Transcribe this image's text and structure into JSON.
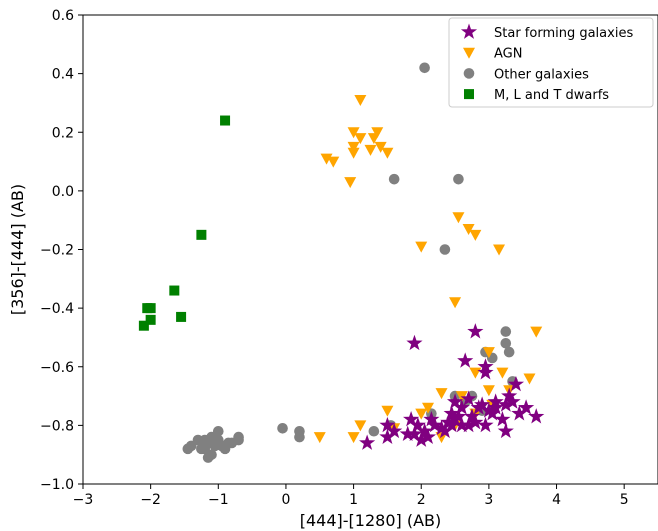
{
  "chart_data": {
    "type": "scatter",
    "xlabel": "[444]-[1280] (AB)",
    "ylabel": "[356]-[444] (AB)",
    "xlim": [
      -3,
      5.5
    ],
    "ylim": [
      -1.0,
      0.6
    ],
    "xticks": [
      -3,
      -2,
      -1,
      0,
      1,
      2,
      3,
      4,
      5
    ],
    "xtick_labels": [
      "−3",
      "−2",
      "−1",
      "0",
      "1",
      "2",
      "3",
      "4",
      "5"
    ],
    "yticks": [
      -1.0,
      -0.8,
      -0.6,
      -0.4,
      -0.2,
      0.0,
      0.2,
      0.4,
      0.6
    ],
    "ytick_labels": [
      "−1.0",
      "−0.8",
      "−0.6",
      "−0.4",
      "−0.2",
      "0.0",
      "0.2",
      "0.4",
      "0.6"
    ],
    "grid": false,
    "legend_position": "top-right",
    "series": [
      {
        "name": "Star forming galaxies",
        "marker": "star",
        "color": "#800080",
        "points": [
          [
            1.9,
            -0.52
          ],
          [
            2.8,
            -0.48
          ],
          [
            2.65,
            -0.58
          ],
          [
            2.95,
            -0.6
          ],
          [
            2.95,
            -0.62
          ],
          [
            3.4,
            -0.66
          ],
          [
            3.3,
            -0.7
          ],
          [
            3.1,
            -0.72
          ],
          [
            3.55,
            -0.74
          ],
          [
            3.25,
            -0.73
          ],
          [
            2.9,
            -0.73
          ],
          [
            2.7,
            -0.71
          ],
          [
            2.45,
            -0.76
          ],
          [
            2.5,
            -0.78
          ],
          [
            2.6,
            -0.8
          ],
          [
            2.75,
            -0.77
          ],
          [
            2.85,
            -0.74
          ],
          [
            3.0,
            -0.75
          ],
          [
            3.05,
            -0.76
          ],
          [
            3.2,
            -0.78
          ],
          [
            3.45,
            -0.76
          ],
          [
            3.7,
            -0.77
          ],
          [
            3.25,
            -0.82
          ],
          [
            2.95,
            -0.8
          ],
          [
            2.7,
            -0.8
          ],
          [
            2.55,
            -0.77
          ],
          [
            2.4,
            -0.79
          ],
          [
            2.35,
            -0.82
          ],
          [
            2.2,
            -0.8
          ],
          [
            2.05,
            -0.82
          ],
          [
            1.95,
            -0.8
          ],
          [
            1.85,
            -0.78
          ],
          [
            1.9,
            -0.83
          ],
          [
            2.0,
            -0.85
          ],
          [
            2.1,
            -0.84
          ],
          [
            1.8,
            -0.83
          ],
          [
            1.6,
            -0.82
          ],
          [
            1.5,
            -0.84
          ],
          [
            1.5,
            -0.8
          ],
          [
            1.2,
            -0.86
          ],
          [
            2.3,
            -0.81
          ],
          [
            2.6,
            -0.74
          ],
          [
            2.5,
            -0.72
          ],
          [
            2.8,
            -0.79
          ],
          [
            3.1,
            -0.74
          ],
          [
            2.15,
            -0.78
          ],
          [
            2.45,
            -0.8
          ],
          [
            3.35,
            -0.72
          ]
        ]
      },
      {
        "name": "AGN",
        "marker": "triangle_down",
        "color": "#FFA500",
        "points": [
          [
            1.1,
            0.31
          ],
          [
            1.0,
            0.2
          ],
          [
            1.35,
            0.2
          ],
          [
            1.3,
            0.18
          ],
          [
            1.1,
            0.18
          ],
          [
            1.0,
            0.15
          ],
          [
            1.4,
            0.15
          ],
          [
            1.25,
            0.14
          ],
          [
            1.0,
            0.13
          ],
          [
            1.5,
            0.13
          ],
          [
            0.6,
            0.11
          ],
          [
            0.7,
            0.1
          ],
          [
            0.95,
            0.03
          ],
          [
            2.55,
            -0.09
          ],
          [
            2.7,
            -0.13
          ],
          [
            2.8,
            -0.15
          ],
          [
            2.0,
            -0.19
          ],
          [
            3.15,
            -0.2
          ],
          [
            2.5,
            -0.38
          ],
          [
            3.7,
            -0.48
          ],
          [
            3.0,
            -0.55
          ],
          [
            2.8,
            -0.62
          ],
          [
            3.2,
            -0.62
          ],
          [
            3.6,
            -0.64
          ],
          [
            3.0,
            -0.68
          ],
          [
            2.3,
            -0.69
          ],
          [
            2.6,
            -0.7
          ],
          [
            3.05,
            -0.73
          ],
          [
            2.8,
            -0.76
          ],
          [
            2.5,
            -0.8
          ],
          [
            2.0,
            -0.76
          ],
          [
            1.6,
            -0.81
          ],
          [
            2.3,
            -0.84
          ],
          [
            1.1,
            -0.8
          ],
          [
            1.0,
            -0.84
          ],
          [
            0.5,
            -0.84
          ],
          [
            1.5,
            -0.75
          ],
          [
            2.1,
            -0.74
          ],
          [
            3.3,
            -0.68
          ]
        ]
      },
      {
        "name": "Other galaxies",
        "marker": "circle",
        "color": "#808080",
        "points": [
          [
            2.05,
            0.42
          ],
          [
            1.6,
            0.04
          ],
          [
            2.55,
            0.04
          ],
          [
            2.35,
            -0.2
          ],
          [
            3.25,
            -0.48
          ],
          [
            3.25,
            -0.52
          ],
          [
            3.3,
            -0.55
          ],
          [
            2.95,
            -0.55
          ],
          [
            3.05,
            -0.57
          ],
          [
            3.35,
            -0.65
          ],
          [
            2.5,
            -0.7
          ],
          [
            2.75,
            -0.7
          ],
          [
            2.65,
            -0.72
          ],
          [
            2.9,
            -0.75
          ],
          [
            2.15,
            -0.76
          ],
          [
            2.45,
            -0.78
          ],
          [
            1.3,
            -0.82
          ],
          [
            1.55,
            -0.8
          ],
          [
            0.2,
            -0.82
          ],
          [
            0.2,
            -0.84
          ],
          [
            -0.05,
            -0.81
          ],
          [
            -0.7,
            -0.84
          ],
          [
            -0.7,
            -0.85
          ],
          [
            -0.85,
            -0.86
          ],
          [
            -0.9,
            -0.88
          ],
          [
            -1.0,
            -0.82
          ],
          [
            -1.0,
            -0.85
          ],
          [
            -1.05,
            -0.87
          ],
          [
            -1.1,
            -0.84
          ],
          [
            -1.15,
            -0.86
          ],
          [
            -1.2,
            -0.85
          ],
          [
            -1.2,
            -0.88
          ],
          [
            -1.1,
            -0.9
          ],
          [
            -1.15,
            -0.91
          ],
          [
            -1.25,
            -0.88
          ],
          [
            -1.3,
            -0.85
          ],
          [
            -1.4,
            -0.87
          ],
          [
            -0.95,
            -0.87
          ],
          [
            -1.05,
            -0.85
          ],
          [
            -0.8,
            -0.86
          ],
          [
            -1.45,
            -0.88
          ]
        ]
      },
      {
        "name": "M, L and T dwarfs",
        "marker": "square",
        "color": "#008000",
        "points": [
          [
            -0.9,
            0.24
          ],
          [
            -1.25,
            -0.15
          ],
          [
            -1.65,
            -0.34
          ],
          [
            -2.05,
            -0.4
          ],
          [
            -2.0,
            -0.4
          ],
          [
            -2.0,
            -0.44
          ],
          [
            -1.55,
            -0.43
          ],
          [
            -2.1,
            -0.46
          ]
        ]
      }
    ]
  }
}
